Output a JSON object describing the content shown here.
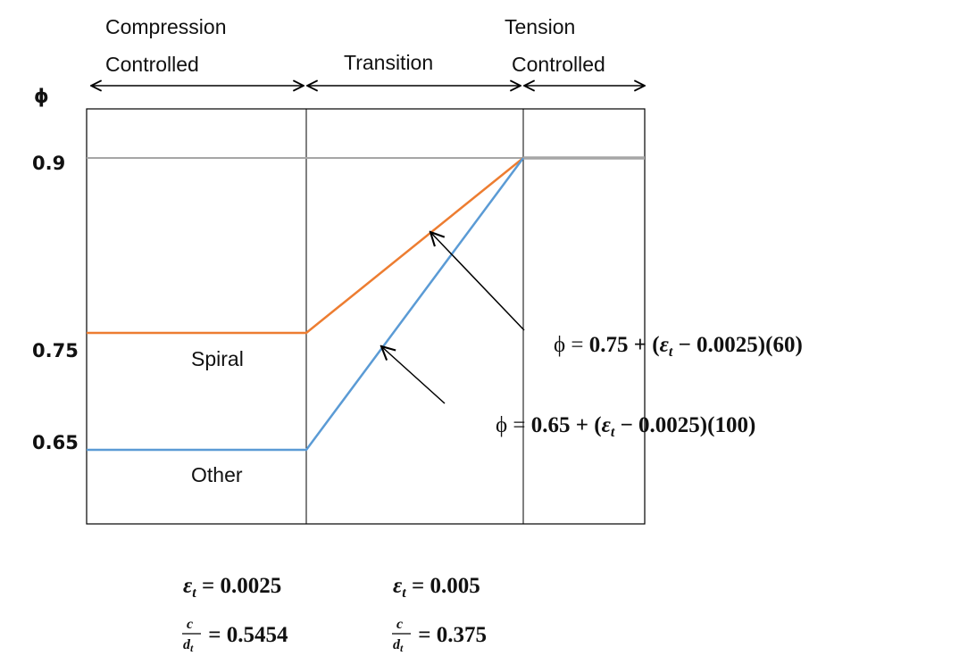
{
  "y_axis_label": "ϕ",
  "y_labels": [
    "0.9",
    "0.75",
    "0.65"
  ],
  "regions": [
    {
      "top": "Compression",
      "bottom": "Controlled"
    },
    {
      "label": "Transition"
    },
    {
      "top": "Tension",
      "bottom": "Controlled"
    }
  ],
  "curve_labels": [
    "Spiral",
    "Other"
  ],
  "equations": [
    [
      "ϕ = ",
      "0.75 + (",
      "ε",
      "t",
      " − 0.0025)(60)"
    ],
    [
      "ϕ = ",
      "0.65 + (",
      "ε",
      "t",
      " − 0.0025)(100)"
    ]
  ],
  "strain_limits": [
    [
      "ε",
      "t",
      " = 0.0025"
    ],
    [
      "ε",
      "t",
      " = 0.005"
    ]
  ],
  "depth_ratios": [
    {
      "num": "c",
      "den": "d",
      "sub": "t",
      "value": " = 0.5454"
    },
    {
      "num": "c",
      "den": "d",
      "sub": "t",
      "value": " = 0.375"
    }
  ]
}
